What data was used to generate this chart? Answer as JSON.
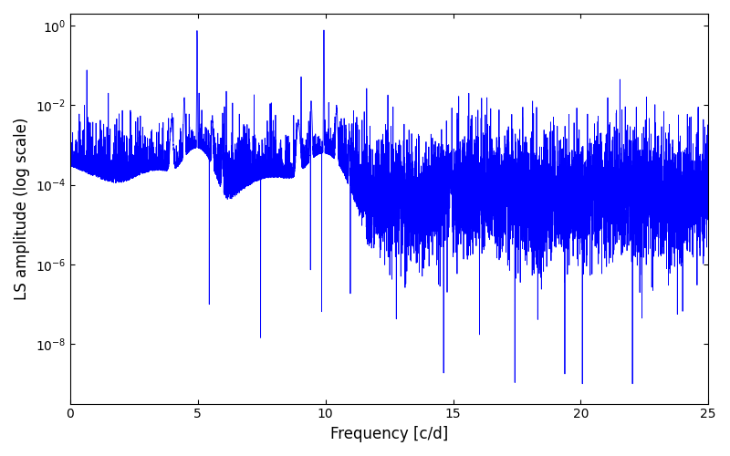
{
  "xlabel": "Frequency [c/d]",
  "ylabel": "LS amplitude (log scale)",
  "xlim": [
    0,
    25
  ],
  "ylim_log": [
    -9.5,
    0.3
  ],
  "line_color": "#0000ff",
  "line_width": 0.6,
  "background_color": "#ffffff",
  "freq_min": 0.0,
  "freq_max": 25.0,
  "freq_n": 8000,
  "peak1_freq": 4.97,
  "peak1_amp": 0.75,
  "peak2_freq": 9.94,
  "peak2_amp": 0.78,
  "peak3_freq": 14.91,
  "peak3_amp": 0.0003,
  "noise_base": 0.0001,
  "figsize": [
    8.0,
    5.0
  ],
  "dpi": 100
}
